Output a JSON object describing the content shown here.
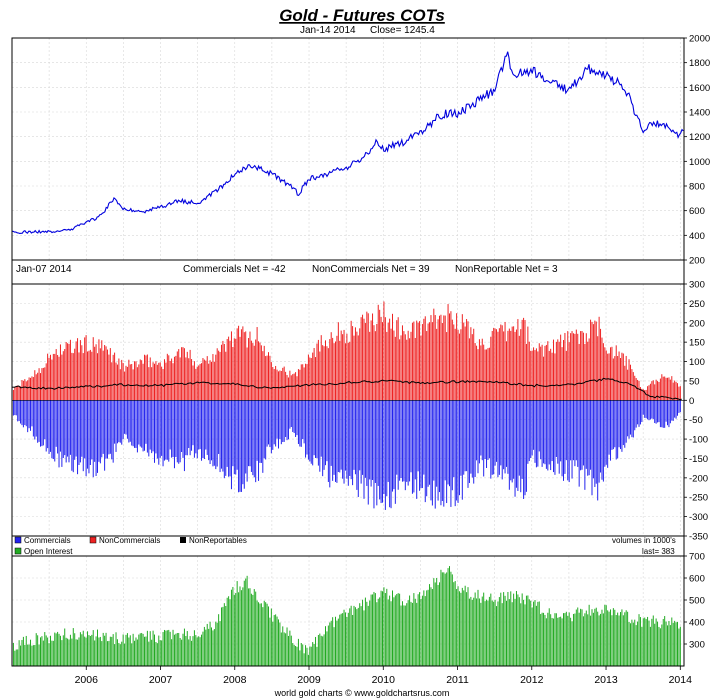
{
  "title": "Gold - Futures COTs",
  "price_panel": {
    "date_label": "Jan-14  2014",
    "close_label": "Close= 1245.4"
  },
  "cot_panel": {
    "date_label": "Jan-07  2014",
    "commercials_net": "Commercials Net = -42",
    "noncommercials_net": "NonCommercials Net = 39",
    "nonreportable_net": "NonReportable Net = 3",
    "volume_note": "volumes in 1000's"
  },
  "oi_panel": {
    "last_label": "last= 383"
  },
  "legend": {
    "commercials": "Commercials",
    "noncommercials": "NonCommercials",
    "nonreportables": "NonReportables",
    "open_interest": "Open Interest"
  },
  "footer": "world gold charts  ©  www.goldchartsrus.com",
  "colors": {
    "price": "#0000dd",
    "commercials": "#2222ee",
    "noncommercials": "#ee2222",
    "nonreportables": "#000000",
    "open_interest": "#22aa22",
    "title": "#0000cc"
  },
  "chart_data": [
    {
      "type": "line",
      "series": [
        {
          "name": "",
          "x": [
            2005.0,
            2005.25,
            2005.5,
            2005.75,
            2006.0,
            2006.2,
            2006.37,
            2006.5,
            2006.75,
            2007.0,
            2007.25,
            2007.5,
            2007.75,
            2008.0,
            2008.2,
            2008.4,
            2008.6,
            2008.8,
            2008.85,
            2009.0,
            2009.25,
            2009.5,
            2009.75,
            2009.9,
            2010.0,
            2010.25,
            2010.5,
            2010.75,
            2010.9,
            2011.0,
            2011.25,
            2011.5,
            2011.67,
            2011.75,
            2012.0,
            2012.25,
            2012.5,
            2012.75,
            2012.9,
            2013.0,
            2013.25,
            2013.5,
            2013.6,
            2013.75,
            2014.0,
            2014.04
          ],
          "y": [
            425,
            428,
            430,
            440,
            500,
            560,
            700,
            620,
            590,
            630,
            680,
            660,
            760,
            890,
            960,
            930,
            860,
            780,
            730,
            860,
            900,
            950,
            1040,
            1150,
            1100,
            1150,
            1230,
            1370,
            1400,
            1380,
            1480,
            1580,
            1880,
            1690,
            1740,
            1660,
            1570,
            1760,
            1720,
            1690,
            1600,
            1250,
            1290,
            1310,
            1210,
            1245
          ]
        }
      ],
      "ylim": [
        200,
        2000
      ],
      "yticks": [
        200,
        400,
        600,
        800,
        1000,
        1200,
        1400,
        1600,
        1800,
        2000
      ],
      "xticks": [
        "2006",
        "2007",
        "2008",
        "2009",
        "2010",
        "2011",
        "2012",
        "2013",
        "2014"
      ]
    },
    {
      "type": "bar",
      "series": [
        {
          "name": "Commercials",
          "x": [
            2005.0,
            2005.3,
            2005.6,
            2006.0,
            2006.3,
            2006.5,
            2006.8,
            2007.0,
            2007.3,
            2007.5,
            2007.8,
            2008.0,
            2008.3,
            2008.5,
            2008.8,
            2009.0,
            2009.3,
            2009.6,
            2009.9,
            2010.0,
            2010.3,
            2010.5,
            2010.8,
            2011.0,
            2011.3,
            2011.6,
            2011.9,
            2012.0,
            2012.3,
            2012.6,
            2012.9,
            2013.0,
            2013.3,
            2013.5,
            2013.8,
            2014.0
          ],
          "y": [
            -40,
            -100,
            -170,
            -210,
            -180,
            -120,
            -150,
            -170,
            -190,
            -150,
            -190,
            -250,
            -220,
            -140,
            -90,
            -170,
            -230,
            -240,
            -290,
            -300,
            -240,
            -260,
            -290,
            -280,
            -200,
            -230,
            -270,
            -180,
            -200,
            -220,
            -270,
            -190,
            -120,
            -50,
            -80,
            -42
          ]
        },
        {
          "name": "NonCommercials",
          "x": [
            2005.0,
            2005.3,
            2005.6,
            2006.0,
            2006.3,
            2006.5,
            2006.8,
            2007.0,
            2007.3,
            2007.5,
            2007.8,
            2008.0,
            2008.3,
            2008.5,
            2008.8,
            2009.0,
            2009.3,
            2009.6,
            2009.9,
            2010.0,
            2010.3,
            2010.5,
            2010.8,
            2011.0,
            2011.3,
            2011.6,
            2011.9,
            2012.0,
            2012.3,
            2012.6,
            2012.9,
            2013.0,
            2013.3,
            2013.5,
            2013.8,
            2014.0
          ],
          "y": [
            30,
            80,
            150,
            170,
            150,
            100,
            120,
            110,
            150,
            110,
            150,
            200,
            190,
            120,
            70,
            140,
            200,
            210,
            250,
            260,
            200,
            220,
            250,
            250,
            170,
            200,
            230,
            150,
            170,
            190,
            220,
            170,
            110,
            30,
            80,
            39
          ]
        },
        {
          "name": "NonReportables",
          "x": [
            2005.0,
            2005.5,
            2006.0,
            2006.5,
            2007.0,
            2007.5,
            2008.0,
            2008.5,
            2009.0,
            2009.5,
            2010.0,
            2010.5,
            2011.0,
            2011.5,
            2012.0,
            2012.5,
            2013.0,
            2013.3,
            2013.6,
            2014.0
          ],
          "y": [
            35,
            30,
            35,
            40,
            38,
            45,
            42,
            30,
            40,
            45,
            50,
            45,
            48,
            48,
            38,
            40,
            55,
            45,
            10,
            3
          ]
        }
      ],
      "ylim": [
        -350,
        300
      ],
      "yticks": [
        -350,
        -300,
        -250,
        -200,
        -150,
        -100,
        -50,
        0,
        50,
        100,
        150,
        200,
        250,
        300
      ]
    },
    {
      "type": "bar",
      "series": [
        {
          "name": "Open Interest",
          "x": [
            2005.0,
            2005.25,
            2005.5,
            2005.75,
            2006.0,
            2006.25,
            2006.5,
            2006.75,
            2007.0,
            2007.25,
            2007.5,
            2007.75,
            2008.0,
            2008.15,
            2008.3,
            2008.5,
            2008.75,
            2009.0,
            2009.25,
            2009.5,
            2009.75,
            2010.0,
            2010.25,
            2010.5,
            2010.75,
            2010.85,
            2011.0,
            2011.25,
            2011.5,
            2011.75,
            2012.0,
            2012.25,
            2012.5,
            2012.75,
            2013.0,
            2013.25,
            2013.5,
            2013.75,
            2014.0
          ],
          "y": [
            280,
            320,
            330,
            350,
            340,
            340,
            320,
            340,
            330,
            350,
            330,
            400,
            550,
            590,
            520,
            430,
            330,
            260,
            380,
            440,
            480,
            540,
            500,
            510,
            600,
            650,
            560,
            520,
            500,
            520,
            490,
            430,
            420,
            460,
            450,
            430,
            400,
            400,
            383
          ]
        }
      ],
      "ylim": [
        200,
        700
      ],
      "yticks": [
        300,
        400,
        500,
        600,
        700
      ]
    }
  ]
}
